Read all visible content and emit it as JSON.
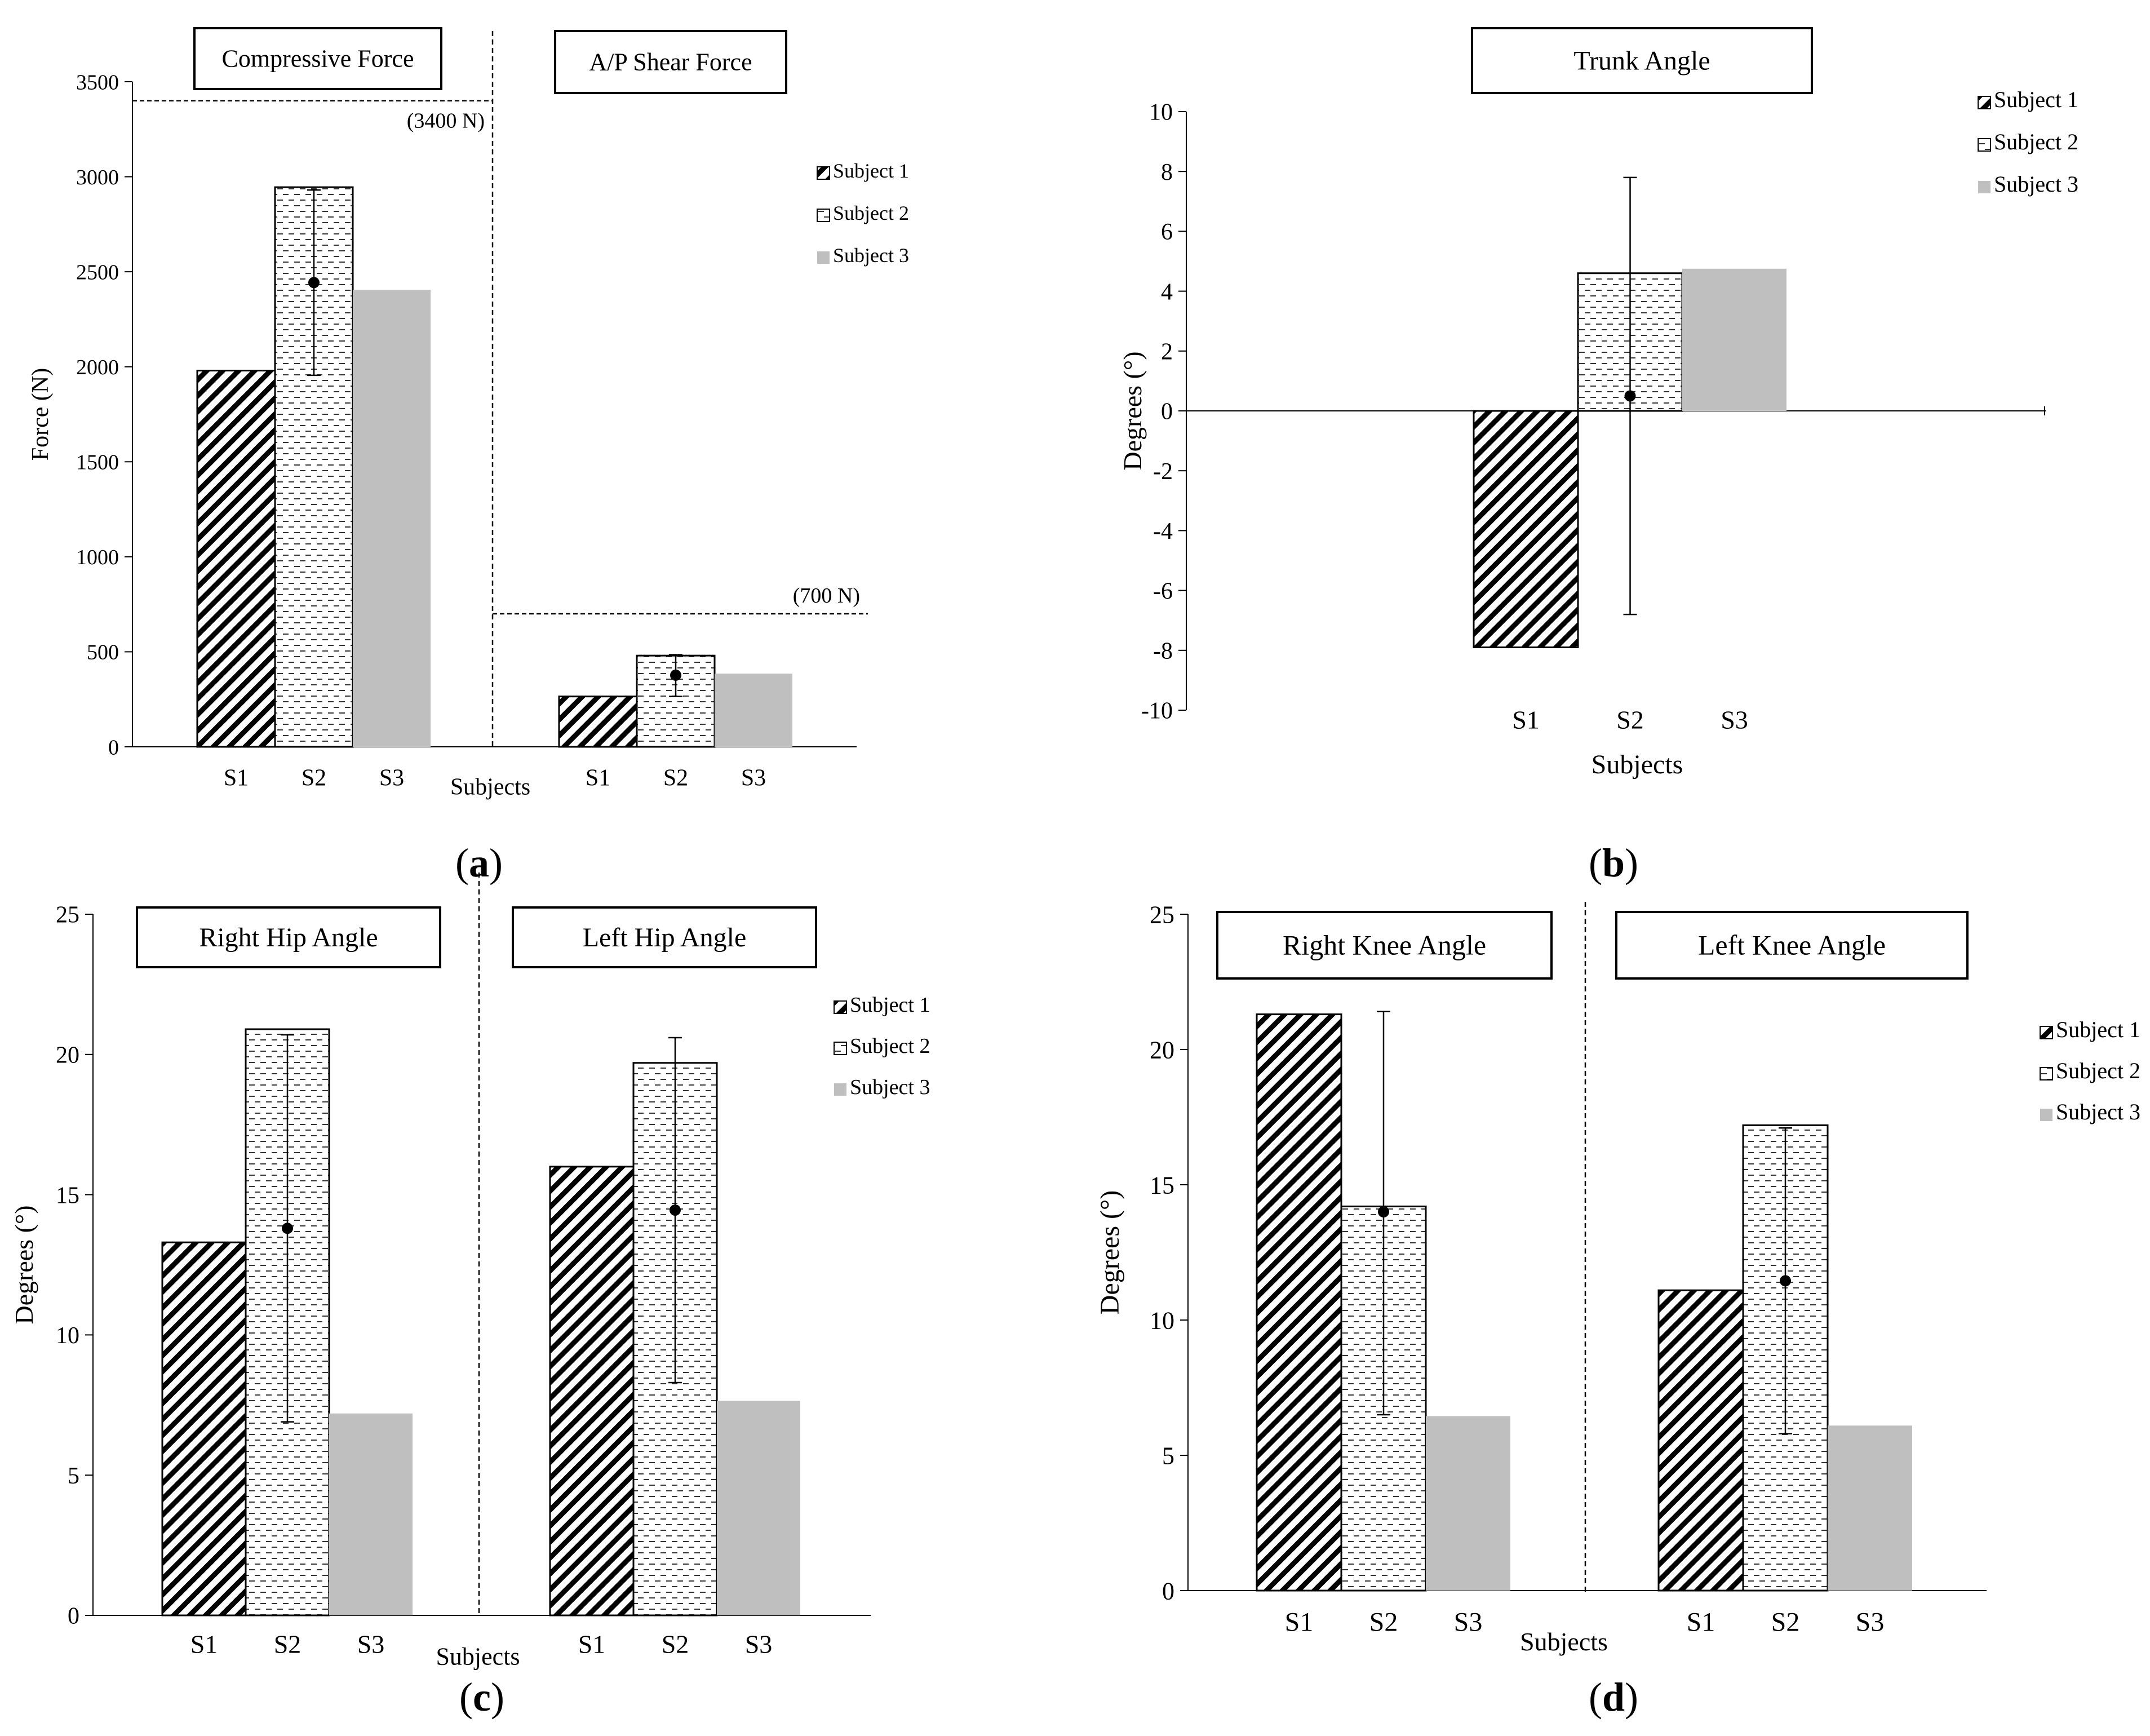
{
  "figure": {
    "subjects_label": "Subjects",
    "panel_labels": [
      "(a)",
      "(b)",
      "(c)",
      "(d)"
    ]
  },
  "legend": [
    "Subject 1",
    "Subject 2",
    "Subject 3"
  ],
  "colors": {
    "subject1": "#000000",
    "subject2": "#444444",
    "subject3": "#bfbfbf",
    "axis": "#000000"
  },
  "chart_data": [
    {
      "id": "a",
      "type": "bar",
      "ylabel": "Force (N)",
      "ylim": [
        0,
        3500
      ],
      "yticks": [
        0,
        500,
        1000,
        1500,
        2000,
        2500,
        3000,
        3500
      ],
      "xlabel": "Subjects",
      "categories": [
        "S1",
        "S2",
        "S3"
      ],
      "groups": [
        {
          "title": "Compressive Force",
          "values": [
            1980,
            2945,
            2405
          ],
          "mean": 2443,
          "error_bar": [
            1955,
            2930
          ],
          "threshold": 3400,
          "threshold_label": "(3400 N)"
        },
        {
          "title": "A/P Shear Force",
          "values": [
            265,
            480,
            385
          ],
          "mean": 377,
          "error_bar": [
            265,
            485
          ],
          "threshold": 700,
          "threshold_label": "(700 N)"
        }
      ],
      "legend": [
        "Subject 1",
        "Subject 2",
        "Subject 3"
      ]
    },
    {
      "id": "b",
      "type": "bar",
      "ylabel": "Degrees (°)",
      "ylim": [
        -10,
        10
      ],
      "yticks": [
        -10,
        -8,
        -6,
        -4,
        -2,
        0,
        2,
        4,
        6,
        8,
        10
      ],
      "xlabel": "Subjects",
      "categories": [
        "S1",
        "S2",
        "S3"
      ],
      "groups": [
        {
          "title": "Trunk Angle",
          "values": [
            -7.9,
            4.6,
            4.75
          ],
          "mean": 0.5,
          "error_bar": [
            -6.8,
            7.8
          ]
        }
      ],
      "legend": [
        "Subject 1",
        "Subject 2",
        "Subject 3"
      ]
    },
    {
      "id": "c",
      "type": "bar",
      "ylabel": "Degrees (°)",
      "ylim": [
        0,
        25
      ],
      "yticks": [
        0,
        5,
        10,
        15,
        20,
        25
      ],
      "xlabel": "Subjects",
      "categories": [
        "S1",
        "S2",
        "S3"
      ],
      "groups": [
        {
          "title": "Right Hip Angle",
          "values": [
            13.3,
            20.9,
            7.2
          ],
          "mean": 13.8,
          "error_bar": [
            6.9,
            20.7
          ]
        },
        {
          "title": "Left Hip Angle",
          "values": [
            16.0,
            19.7,
            7.65
          ],
          "mean": 14.45,
          "error_bar": [
            8.3,
            20.6
          ]
        }
      ],
      "legend": [
        "Subject 1",
        "Subject 2",
        "Subject 3"
      ]
    },
    {
      "id": "d",
      "type": "bar",
      "ylabel": "Degrees (°)",
      "ylim": [
        0,
        25
      ],
      "yticks": [
        0,
        5,
        10,
        15,
        20,
        25
      ],
      "xlabel": "Subjects",
      "categories": [
        "S1",
        "S2",
        "S3"
      ],
      "groups": [
        {
          "title": "Right Knee Angle",
          "values": [
            21.3,
            14.2,
            6.45
          ],
          "mean": 14.0,
          "error_bar": [
            6.5,
            21.4
          ]
        },
        {
          "title": "Left Knee Angle",
          "values": [
            11.1,
            17.2,
            6.1
          ],
          "mean": 11.45,
          "error_bar": [
            5.8,
            17.1
          ]
        }
      ],
      "legend": [
        "Subject 1",
        "Subject 2",
        "Subject 3"
      ]
    }
  ]
}
